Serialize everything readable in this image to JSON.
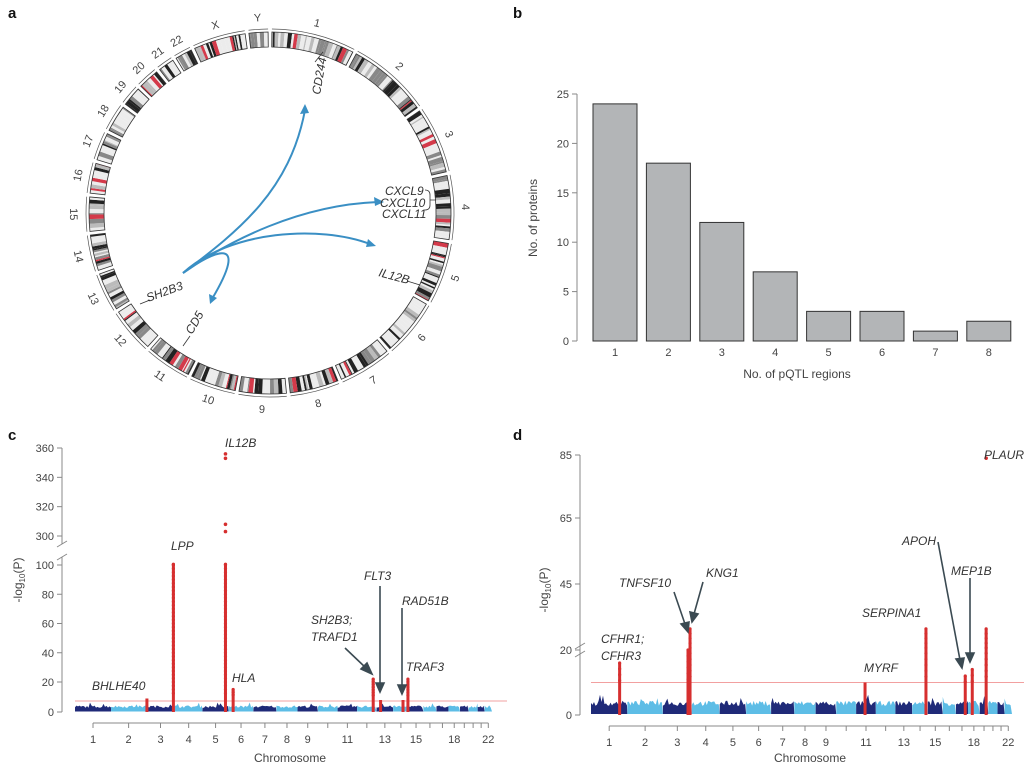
{
  "panels": {
    "a": "a",
    "b": "b",
    "c": "c",
    "d": "d"
  },
  "diagram": {
    "type": "circos",
    "chromosomes": [
      "1",
      "2",
      "3",
      "4",
      "5",
      "6",
      "7",
      "8",
      "9",
      "10",
      "11",
      "12",
      "13",
      "14",
      "15",
      "16",
      "17",
      "18",
      "19",
      "20",
      "21",
      "22",
      "X",
      "Y"
    ],
    "chromosome_lengths_mb": [
      249,
      243,
      198,
      191,
      181,
      171,
      159,
      146,
      141,
      136,
      135,
      134,
      115,
      107,
      102,
      90,
      83,
      80,
      59,
      63,
      48,
      51,
      156,
      57
    ],
    "link_color": "#3a8fc4",
    "source": {
      "gene": "SH2B3",
      "chr": "12"
    },
    "targets": [
      {
        "gene": "CD244",
        "chr": "1"
      },
      {
        "gene": "CXCL9",
        "chr": "4"
      },
      {
        "gene": "CXCL10",
        "chr": "4"
      },
      {
        "gene": "CXCL11",
        "chr": "4"
      },
      {
        "gene": "IL12B",
        "chr": "5"
      },
      {
        "gene": "CD5",
        "chr": "11"
      }
    ]
  },
  "chart_data": [
    {
      "panel": "b",
      "type": "bar",
      "categories": [
        "1",
        "2",
        "3",
        "4",
        "5",
        "6",
        "7",
        "8"
      ],
      "values": [
        24,
        18,
        12,
        7,
        3,
        3,
        1,
        2
      ],
      "xlabel": "No. of pQTL regions",
      "ylabel": "No. of proteins",
      "ylim": [
        0,
        25
      ],
      "yticks": [
        0,
        5,
        10,
        15,
        20,
        25
      ],
      "bar_color": "#b3b5b7",
      "grid": false
    },
    {
      "panel": "c",
      "type": "scatter",
      "subtype": "manhattan",
      "xlabel": "Chromosome",
      "ylabel": "-log10(P)",
      "xtick_labels": [
        "1",
        "2",
        "3",
        "4",
        "5",
        "6",
        "7",
        "8",
        "9",
        "11",
        "13",
        "15",
        "18",
        "22"
      ],
      "yticks": [
        0,
        20,
        40,
        60,
        80,
        100,
        300,
        320,
        340,
        360
      ],
      "axis_break": [
        100,
        300
      ],
      "threshold": 7.3,
      "colors": {
        "odd_chr": "#1f2a78",
        "even_chr": "#5dbde6",
        "significant": "#d62f2f",
        "threshold": "#f2a0a0"
      },
      "peaks": [
        {
          "gene": "BHLHE40",
          "chr": 3,
          "pos_mb": 5,
          "value": 9
        },
        {
          "gene": "LPP",
          "chr": 3,
          "pos_mb": 188,
          "value": 105
        },
        {
          "gene": "IL12B",
          "chr": 5,
          "pos_mb": 159,
          "value": 105,
          "extra_points": [
            303,
            308,
            353,
            356
          ]
        },
        {
          "gene": "HLA",
          "chr": 6,
          "pos_mb": 31,
          "value": 15
        },
        {
          "gene": "SH2B3; TRAFD1",
          "chr": 12,
          "pos_mb": 111,
          "value": 22
        },
        {
          "gene": "FLT3",
          "chr": 13,
          "pos_mb": 28,
          "value": 8
        },
        {
          "gene": "RAD51B",
          "chr": 14,
          "pos_mb": 68,
          "value": 8
        },
        {
          "gene": "TRAF3",
          "chr": 14,
          "pos_mb": 102,
          "value": 22
        }
      ]
    },
    {
      "panel": "d",
      "type": "scatter",
      "subtype": "manhattan",
      "xlabel": "Chromosome",
      "ylabel": "-log10(P)",
      "xtick_labels": [
        "1",
        "2",
        "3",
        "4",
        "5",
        "6",
        "7",
        "8",
        "9",
        "11",
        "13",
        "15",
        "18",
        "22"
      ],
      "yticks": [
        0,
        20,
        45,
        65,
        85
      ],
      "axis_break": [
        20,
        20
      ],
      "threshold": 10,
      "colors": {
        "odd_chr": "#1f2a78",
        "even_chr": "#5dbde6",
        "significant": "#d62f2f",
        "threshold": "#f2a0a0"
      },
      "peaks": [
        {
          "gene": "CFHR1; CFHR3",
          "chr": 1,
          "pos_mb": 196,
          "value": 16
        },
        {
          "gene": "TNFSF10",
          "chr": 3,
          "pos_mb": 172,
          "value": 20
        },
        {
          "gene": "KNG1",
          "chr": 3,
          "pos_mb": 186,
          "value": 28
        },
        {
          "gene": "MYRF",
          "chr": 11,
          "pos_mb": 61,
          "value": 10
        },
        {
          "gene": "SERPINA1",
          "chr": 14,
          "pos_mb": 94,
          "value": 28
        },
        {
          "gene": "APOH",
          "chr": 17,
          "pos_mb": 64,
          "value": 12
        },
        {
          "gene": "MEP1B",
          "chr": 18,
          "pos_mb": 29,
          "value": 14
        },
        {
          "gene": "PLAUR",
          "chr": 19,
          "pos_mb": 44,
          "value": 28,
          "extra_points": [
            84
          ]
        }
      ]
    }
  ],
  "labels": {
    "ylabel_log": "-log",
    "ylabel_sub": "10",
    "ylabel_p": "(P)",
    "c": {
      "IL12B": "IL12B",
      "LPP": "LPP",
      "BHLHE40": "BHLHE40",
      "HLA": "HLA",
      "SH2B3": "SH2B3;",
      "TRAFD1": "TRAFD1",
      "FLT3": "FLT3",
      "RAD51B": "RAD51B",
      "TRAF3": "TRAF3"
    },
    "d": {
      "PLAUR": "PLAUR",
      "APOH": "APOH",
      "MEP1B": "MEP1B",
      "SERPINA1": "SERPINA1",
      "MYRF": "MYRF",
      "TNFSF10": "TNFSF10",
      "KNG1": "KNG1",
      "CFHR1": "CFHR1;",
      "CFHR3": "CFHR3"
    },
    "a": {
      "CD244": "CD244",
      "CXCL9": "CXCL9",
      "CXCL10": "CXCL10",
      "CXCL11": "CXCL11",
      "IL12B": "IL12B",
      "SH2B3": "SH2B3",
      "CD5": "CD5"
    }
  }
}
